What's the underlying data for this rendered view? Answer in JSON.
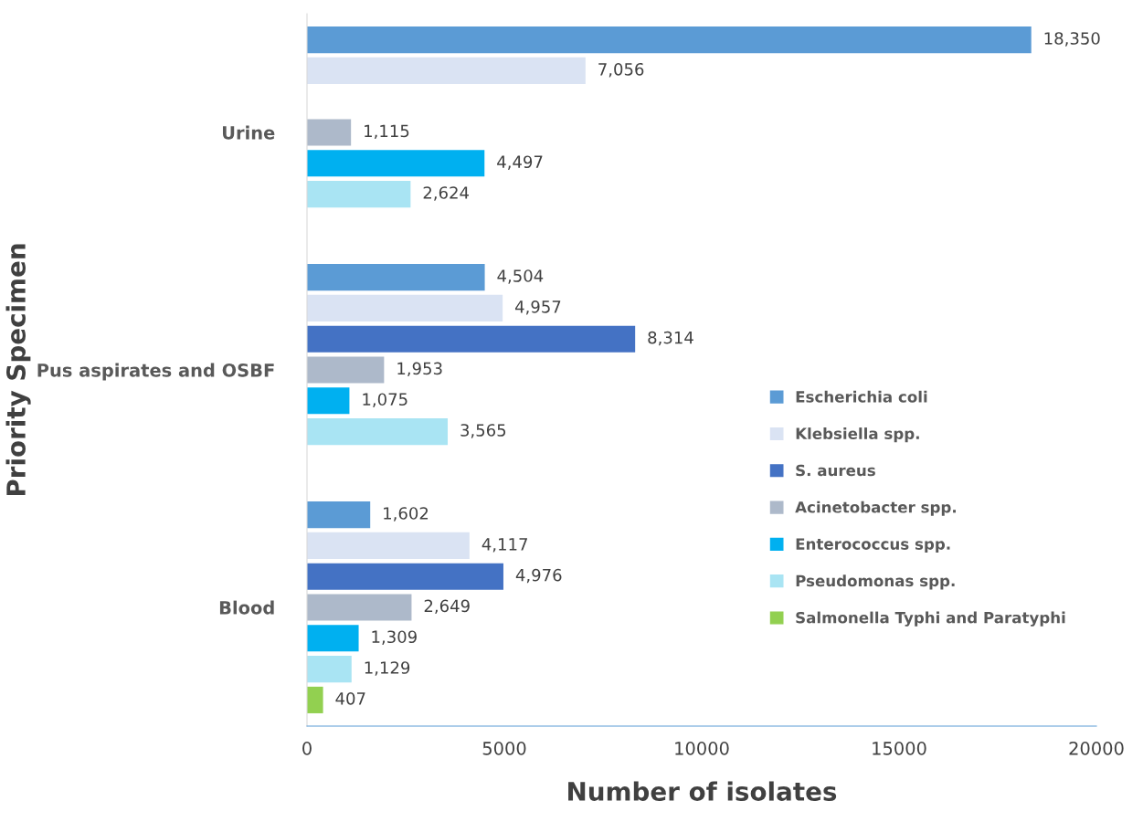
{
  "chart_data": {
    "type": "bar",
    "orientation": "horizontal",
    "xlabel": "Number of isolates",
    "ylabel": "Priority Specimen",
    "categories": [
      "Urine",
      "Pus aspirates and OSBF",
      "Blood"
    ],
    "series": [
      {
        "name": "Escherichia coli",
        "color": "#5b9bd5",
        "values": [
          18350,
          4504,
          1602
        ],
        "value_labels": [
          "18,350",
          "4,504",
          "1,602"
        ]
      },
      {
        "name": "Klebsiella spp.",
        "color": "#dae3f3",
        "values": [
          7056,
          4957,
          4117
        ],
        "value_labels": [
          "7,056",
          "4,957",
          "4,117"
        ]
      },
      {
        "name": "S. aureus",
        "color": "#4472c4",
        "values": [
          null,
          8314,
          4976
        ],
        "value_labels": [
          null,
          "8,314",
          "4,976"
        ]
      },
      {
        "name": "Acinetobacter spp.",
        "color": "#adb9ca",
        "values": [
          1115,
          1953,
          2649
        ],
        "value_labels": [
          "1,115",
          "1,953",
          "2,649"
        ]
      },
      {
        "name": "Enterococcus spp.",
        "color": "#00b0f0",
        "values": [
          4497,
          1075,
          1309
        ],
        "value_labels": [
          "4,497",
          "1,075",
          "1,309"
        ]
      },
      {
        "name": "Pseudomonas spp.",
        "color": "#a9e4f3",
        "values": [
          2624,
          3565,
          1129
        ],
        "value_labels": [
          "2,624",
          "3,565",
          "1,129"
        ]
      },
      {
        "name": "Salmonella Typhi and Paratyphi",
        "color": "#92d050",
        "values": [
          null,
          null,
          407
        ],
        "value_labels": [
          null,
          null,
          "407"
        ]
      }
    ],
    "xlim": [
      0,
      20000
    ],
    "xticks": [
      0,
      5000,
      10000,
      15000,
      20000
    ],
    "grid": false,
    "legend": "right"
  }
}
